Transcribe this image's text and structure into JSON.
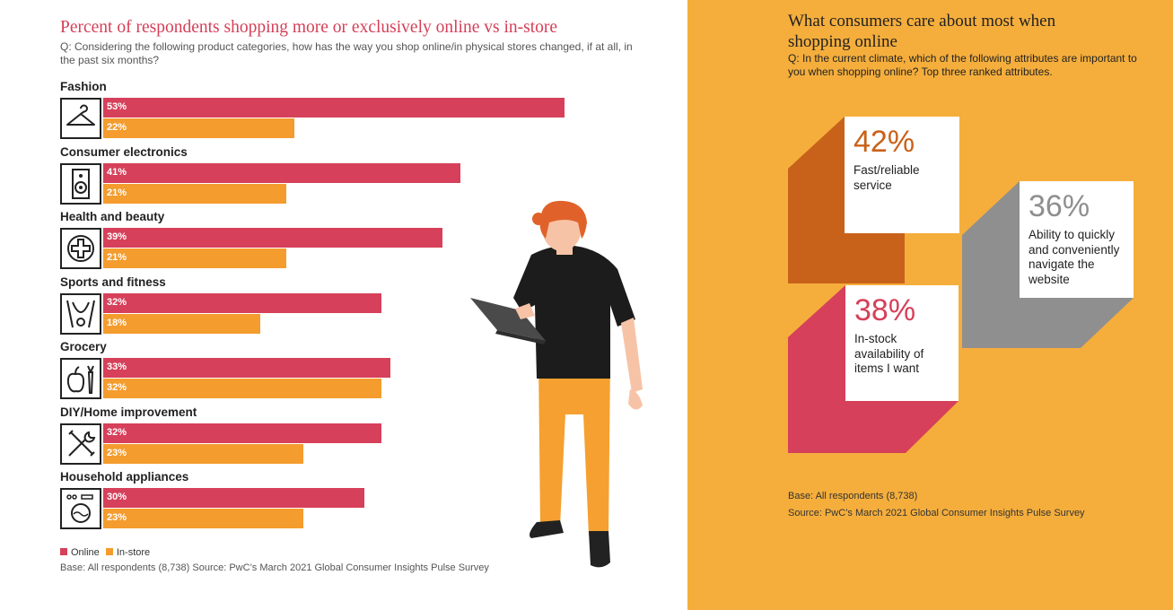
{
  "left": {
    "title": "Percent of respondents shopping more or exclusively online vs in-store",
    "question": "Q: Considering the following product categories, how has the way you shop online/in physical stores changed, if at all, in the past six months?",
    "legend": {
      "online": "Online",
      "instore": "In-store"
    },
    "source": "Base: All respondents (8,738)  Source: PwC’s March 2021 Global Consumer Insights Pulse Survey"
  },
  "chart_data": {
    "type": "bar",
    "orientation": "horizontal",
    "categories": [
      "Fashion",
      "Consumer electronics",
      "Health and beauty",
      "Sports and fitness",
      "Grocery",
      "DIY/Home improvement",
      "Household appliances"
    ],
    "series": [
      {
        "name": "Online",
        "values": [
          53,
          41,
          39,
          32,
          33,
          32,
          30
        ],
        "labels": [
          "53%",
          "41%",
          "39%",
          "32%",
          "33%",
          "32%",
          "30%"
        ],
        "color": "#d6405a"
      },
      {
        "name": "In-store",
        "values": [
          22,
          21,
          21,
          18,
          32,
          23,
          23
        ],
        "labels": [
          "22%",
          "21%",
          "21%",
          "18%",
          "32%",
          "23%",
          "23%"
        ],
        "color": "#f49c2e"
      }
    ],
    "icons": [
      "hanger-icon",
      "speaker-icon",
      "medical-cross-icon",
      "fitness-icon",
      "grocery-icon",
      "tools-icon",
      "washing-machine-icon"
    ],
    "xlim": [
      0,
      100
    ]
  },
  "right": {
    "title": "What consumers care about most when shopping online",
    "question": "Q: In the current climate, which of the following attributes are important to you when shopping online? Top three ranked attributes.",
    "attributes": [
      {
        "value": "42%",
        "label": "Fast/reliable service",
        "color": "#c8621a"
      },
      {
        "value": "36%",
        "label": "Ability to quickly and conveniently navigate the website",
        "color": "#8f8f8f"
      },
      {
        "value": "38%",
        "label": "In-stock availability of items I want",
        "color": "#d6405a"
      }
    ],
    "base": "Base: All respondents (8,738)",
    "source": "Source: PwC’s March 2021 Global Consumer Insights Pulse Survey"
  }
}
